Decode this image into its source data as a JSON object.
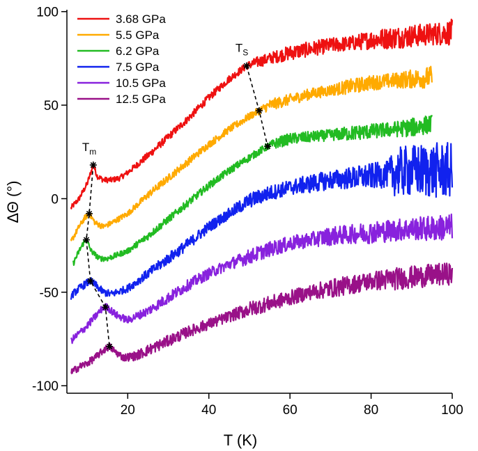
{
  "chart_data": {
    "type": "line",
    "title": "",
    "xlabel": "T (K)",
    "ylabel": "ΔΘ (°)",
    "xlim": [
      5,
      100
    ],
    "ylim": [
      -104,
      101
    ],
    "xticks": [
      20,
      40,
      60,
      80,
      100
    ],
    "yticks": [
      -100,
      -50,
      0,
      50,
      100
    ],
    "legend_position": "top-left",
    "series": [
      {
        "name": "3.68 GPa",
        "color": "#ee1111",
        "x": [
          6,
          8,
          10,
          11.5,
          12.5,
          14,
          16,
          18,
          20,
          25,
          30,
          35,
          40,
          45,
          49.3,
          52,
          55,
          60,
          65,
          70,
          75,
          80,
          85,
          90,
          95,
          100
        ],
        "y": [
          -5,
          0,
          8,
          18,
          12,
          10,
          10,
          11,
          14,
          23,
          33,
          43,
          54,
          64,
          71,
          73,
          75,
          78,
          80,
          82,
          83,
          85,
          86,
          87,
          88,
          89
        ],
        "noise": [
          1.5,
          1.5,
          1.5,
          1.5,
          1.5,
          1.5,
          1.5,
          1.5,
          1.5,
          2,
          2,
          2,
          2,
          2,
          2,
          3,
          3,
          4,
          4,
          4,
          4,
          5,
          6,
          6,
          6,
          7
        ]
      },
      {
        "name": "5.5 GPa",
        "color": "#ffaa00",
        "x": [
          6,
          8,
          9.5,
          10.5,
          12,
          14,
          16,
          20,
          25,
          30,
          35,
          40,
          45,
          50,
          52.4,
          55,
          60,
          65,
          70,
          75,
          80,
          85,
          90,
          95
        ],
        "y": [
          -23,
          -15,
          -10,
          -8,
          -13,
          -15,
          -13,
          -8,
          2,
          11,
          20,
          29,
          37,
          44,
          47,
          50,
          53,
          56,
          58,
          60,
          62,
          63,
          64,
          65
        ],
        "noise": [
          1.5,
          1.5,
          1.5,
          1.5,
          1.5,
          1.5,
          1.5,
          1.5,
          2,
          2,
          2,
          2,
          2,
          2,
          2,
          3,
          3,
          3,
          3,
          4,
          4,
          4,
          5,
          6
        ]
      },
      {
        "name": "6.2 GPa",
        "color": "#22bb22",
        "x": [
          6.5,
          8,
          9,
          9.8,
          11,
          13,
          15,
          20,
          25,
          30,
          35,
          40,
          45,
          50,
          54.5,
          57,
          60,
          65,
          70,
          75,
          80,
          85,
          90,
          95
        ],
        "y": [
          -35,
          -28,
          -24,
          -22,
          -28,
          -32,
          -32,
          -28,
          -20,
          -11,
          -2,
          7,
          15,
          22,
          28,
          30,
          32,
          33,
          34,
          35,
          36,
          37,
          38,
          40
        ],
        "noise": [
          1.5,
          1.5,
          1.5,
          1.5,
          1.5,
          1.5,
          1.5,
          1.5,
          2,
          2,
          2,
          2,
          2,
          2,
          2,
          3,
          3,
          3,
          3,
          4,
          4,
          4,
          5,
          5
        ]
      },
      {
        "name": "7.5 GPa",
        "color": "#1122ee",
        "x": [
          6,
          8,
          10,
          10.8,
          12,
          14,
          16,
          20,
          25,
          30,
          35,
          40,
          45,
          50,
          55,
          60,
          65,
          70,
          75,
          80,
          84,
          86,
          90,
          95,
          100
        ],
        "y": [
          -52,
          -48,
          -45,
          -44,
          -46,
          -50,
          -51,
          -48,
          -40,
          -32,
          -24,
          -15,
          -8,
          -1,
          3,
          6,
          8,
          10,
          11,
          12,
          13,
          14,
          15,
          15,
          15
        ],
        "noise": [
          2,
          2,
          2,
          2,
          2,
          2,
          2,
          2,
          2.5,
          3,
          3,
          3,
          3,
          4,
          4,
          4,
          5,
          5,
          6,
          7,
          7,
          13,
          14,
          15,
          15
        ]
      },
      {
        "name": "10.5 GPa",
        "color": "#8822dd",
        "x": [
          6,
          8,
          10,
          12,
          14,
          15,
          17,
          20,
          25,
          30,
          35,
          40,
          45,
          50,
          55,
          60,
          65,
          70,
          75,
          80,
          85,
          90,
          95,
          100
        ],
        "y": [
          -76,
          -72,
          -68,
          -63,
          -58,
          -58,
          -62,
          -65,
          -60,
          -53,
          -46,
          -40,
          -35,
          -31,
          -27,
          -24,
          -22,
          -20,
          -19,
          -18,
          -17,
          -16,
          -16,
          -15
        ],
        "noise": [
          2,
          2,
          2,
          2,
          2,
          2,
          2,
          2,
          2.5,
          3,
          3,
          3,
          3,
          4,
          4,
          4,
          4,
          5,
          5,
          6,
          6,
          6,
          7,
          7
        ]
      },
      {
        "name": "12.5 GPa",
        "color": "#991188",
        "x": [
          6,
          8,
          10,
          12,
          14,
          15.5,
          17,
          19,
          22,
          25,
          30,
          35,
          40,
          45,
          50,
          55,
          60,
          65,
          70,
          75,
          80,
          85,
          90,
          95,
          100
        ],
        "y": [
          -93,
          -90,
          -88,
          -85,
          -81,
          -79,
          -82,
          -85,
          -84,
          -81,
          -76,
          -71,
          -67,
          -63,
          -59,
          -56,
          -53,
          -50,
          -48,
          -46,
          -44,
          -43,
          -42,
          -41,
          -40
        ],
        "noise": [
          2,
          2,
          2,
          2,
          2,
          2,
          2,
          2,
          2.5,
          3,
          3,
          3,
          3,
          3,
          4,
          4,
          4,
          4,
          5,
          5,
          5,
          6,
          6,
          6,
          6
        ]
      }
    ],
    "annotations": {
      "Tm": {
        "label": "T",
        "subscript": "m",
        "points": [
          [
            11.5,
            18
          ],
          [
            10.5,
            -8
          ],
          [
            9.8,
            -22
          ],
          [
            10.8,
            -44
          ],
          [
            14.5,
            -58
          ],
          [
            15.5,
            -79
          ]
        ]
      },
      "Ts": {
        "label": "T",
        "subscript": "S",
        "points": [
          [
            49.3,
            71
          ],
          [
            52.4,
            47
          ],
          [
            54.5,
            28
          ]
        ]
      }
    }
  }
}
